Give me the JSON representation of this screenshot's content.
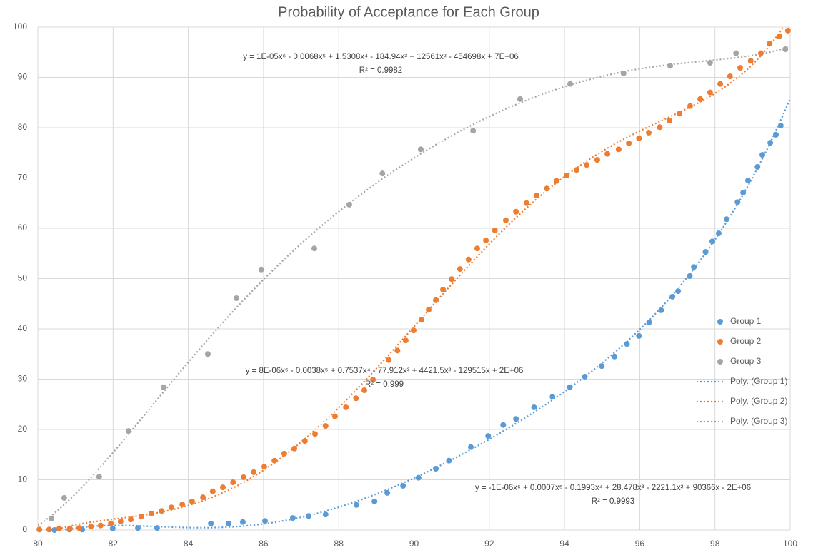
{
  "chart_data": {
    "type": "scatter",
    "title": "Probability of Acceptance for Each Group",
    "xlim": [
      80,
      100
    ],
    "xticks": [
      80,
      82,
      84,
      86,
      88,
      90,
      92,
      94,
      96,
      98,
      100
    ],
    "ylim": [
      0,
      100
    ],
    "yticks": [
      0,
      10,
      20,
      30,
      40,
      50,
      60,
      70,
      80,
      90,
      100
    ],
    "grid": true,
    "legend": "right",
    "series": [
      {
        "name": "Group 1",
        "color": "#5b9bd5",
        "x": [
          80.44,
          80.84,
          81.18,
          81.99,
          82.66,
          83.17,
          84.6,
          85.07,
          85.45,
          86.04,
          86.78,
          87.2,
          87.65,
          88.47,
          88.95,
          89.29,
          89.71,
          90.12,
          90.58,
          90.93,
          91.51,
          91.97,
          92.37,
          92.71,
          93.19,
          93.68,
          94.14,
          94.54,
          94.99,
          95.33,
          95.66,
          95.98,
          96.25,
          96.57,
          96.87,
          97.02,
          97.33,
          97.44,
          97.75,
          97.93,
          98.1,
          98.31,
          98.6,
          98.75,
          98.88,
          99.13,
          99.26,
          99.47,
          99.62,
          99.75
        ],
        "y": [
          0,
          0.1,
          0.1,
          0.3,
          0.4,
          0.4,
          1.3,
          1.3,
          1.6,
          1.8,
          2.4,
          2.8,
          3.1,
          5.0,
          5.7,
          7.4,
          8.8,
          10.4,
          12.2,
          13.8,
          16.5,
          18.7,
          20.9,
          22.1,
          24.4,
          26.5,
          28.4,
          30.5,
          32.6,
          34.5,
          37.0,
          38.6,
          41.3,
          43.7,
          46.4,
          47.5,
          50.5,
          52.3,
          55.3,
          57.4,
          59.0,
          61.8,
          65.2,
          67.1,
          69.5,
          72.2,
          74.6,
          77.0,
          78.6,
          80.4
        ],
        "trendline": {
          "name": "Poly. (Group 1)",
          "equation": "y = -1E-06x⁶ + 0.0007x⁵ - 0.1993x⁴ + 28.478x³ - 2221.1x² + 90366x - 2E+06",
          "r2": "R² = 0.9993"
        }
      },
      {
        "name": "Group 2",
        "color": "#ed7d31",
        "x": [
          80.04,
          80.3,
          80.57,
          80.85,
          81.1,
          81.41,
          81.67,
          81.94,
          82.2,
          82.47,
          82.75,
          83.02,
          83.29,
          83.55,
          83.84,
          84.1,
          84.39,
          84.65,
          84.92,
          85.19,
          85.47,
          85.74,
          86.02,
          86.29,
          86.55,
          86.82,
          87.1,
          87.37,
          87.65,
          87.9,
          88.19,
          88.46,
          88.68,
          88.91,
          89.33,
          89.56,
          89.78,
          89.99,
          90.2,
          90.39,
          90.58,
          90.77,
          91.0,
          91.22,
          91.45,
          91.68,
          91.91,
          92.15,
          92.44,
          92.71,
          92.99,
          93.26,
          93.53,
          93.79,
          94.06,
          94.32,
          94.59,
          94.87,
          95.14,
          95.44,
          95.71,
          95.98,
          96.24,
          96.53,
          96.79,
          97.06,
          97.34,
          97.61,
          97.87,
          98.14,
          98.4,
          98.67,
          98.95,
          99.22,
          99.45,
          99.71,
          99.94
        ],
        "y": [
          0.1,
          0.1,
          0.3,
          0.3,
          0.4,
          0.7,
          0.9,
          1.3,
          1.7,
          2.1,
          2.7,
          3.3,
          3.8,
          4.5,
          5.1,
          5.7,
          6.5,
          7.7,
          8.5,
          9.5,
          10.5,
          11.5,
          12.6,
          13.8,
          15.2,
          16.2,
          17.7,
          19.1,
          20.7,
          22.6,
          24.4,
          26.2,
          27.8,
          29.9,
          33.8,
          35.7,
          37.7,
          39.7,
          41.8,
          43.8,
          45.7,
          47.8,
          49.9,
          51.9,
          53.8,
          56.0,
          57.6,
          59.6,
          61.6,
          63.3,
          65.0,
          66.5,
          67.9,
          69.4,
          70.5,
          71.6,
          72.6,
          73.6,
          74.8,
          75.7,
          76.9,
          77.9,
          79.0,
          80.1,
          81.4,
          82.8,
          84.3,
          85.7,
          87.0,
          88.7,
          90.2,
          91.9,
          93.3,
          94.8,
          96.7,
          98.2,
          99.3
        ],
        "trendline": {
          "name": "Poly. (Group 2)",
          "equation": "y = 8E-06x⁶ - 0.0038x⁵ + 0.7537x⁴ - 77.912x³ + 4421.5x² - 129515x + 2E+06",
          "r2": "R² = 0.999"
        }
      },
      {
        "name": "Group 3",
        "color": "#a5a5a5",
        "x": [
          80.36,
          80.7,
          81.63,
          82.41,
          83.34,
          84.52,
          85.28,
          85.94,
          87.35,
          88.28,
          89.16,
          90.18,
          91.57,
          92.82,
          94.15,
          95.57,
          96.81,
          97.87,
          98.56,
          99.87
        ],
        "y": [
          2.3,
          6.4,
          10.6,
          19.7,
          28.4,
          35.0,
          46.1,
          51.8,
          56.0,
          64.7,
          70.9,
          75.7,
          79.4,
          85.7,
          88.7,
          90.8,
          92.3,
          92.9,
          94.8,
          95.6
        ],
        "trendline": {
          "name": "Poly. (Group 3)",
          "equation": "y = 1E-05x⁶ - 0.0068x⁵ + 1.5308x⁴ - 184.94x³ + 12561x² - 454698x + 7E+06",
          "r2": "R² = 0.9982"
        }
      }
    ]
  }
}
